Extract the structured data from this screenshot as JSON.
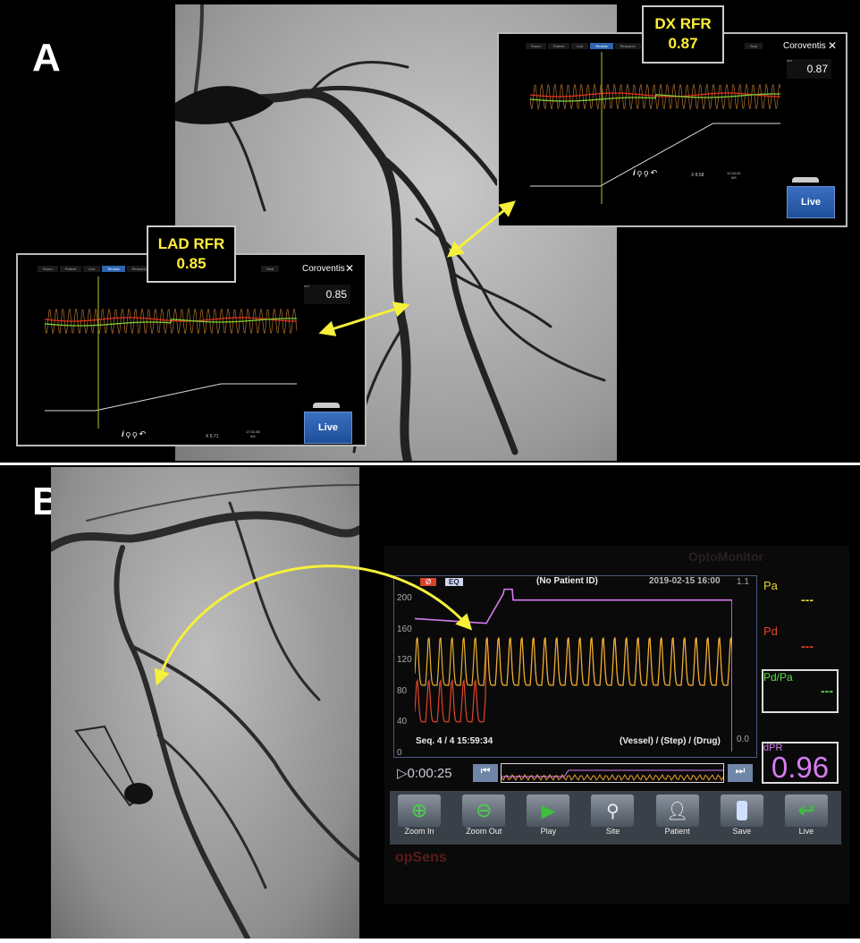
{
  "panel_a": {
    "label": "A",
    "dx": {
      "callout_title": "DX RFR",
      "callout_value": "0.87",
      "brand": "Coroventis",
      "tabs": [
        "Room",
        "Patient",
        "Live",
        "Review",
        "Research",
        "Seal"
      ],
      "active_tab": "Review",
      "rfr_label": "RFR",
      "rfr_value": "0.87",
      "x_readout": "X 8.58",
      "time": "12:34:02",
      "page": "5/5",
      "live_label": "Live"
    },
    "lad": {
      "callout_title": "LAD RFR",
      "callout_value": "0.85",
      "brand": "Coroventis",
      "tabs": [
        "Room",
        "Patient",
        "Live",
        "Review",
        "Research",
        "Seal"
      ],
      "active_tab": "Review",
      "rfr_label": "RFR",
      "rfr_value": "0.85",
      "x_readout": "X 6.71",
      "time": "17:31:38",
      "page": "4/4",
      "live_label": "Live"
    },
    "arrow_color": "#f5f03a"
  },
  "panel_b": {
    "label": "B",
    "monitor": {
      "watermark": "OptoMonitor",
      "patient": "(No Patient ID)",
      "datetime": "2019-02-15  16:00",
      "badge_red": "Ø",
      "badge_eq": "EQ",
      "left_axis": [
        "200",
        "160",
        "120",
        "80",
        "40",
        "0"
      ],
      "right_axis": [
        "1.1",
        "0.0"
      ],
      "seq": "Seq. 4 / 4  15:59:34",
      "context": "(Vessel) / (Step) / (Drug)",
      "timer": "▷0:00:25",
      "legend": {
        "pa": "Pa",
        "pd": "Pd",
        "pdpa": "Pd/Pa",
        "pa_value": "---",
        "pd_value": "---",
        "pdpa_value": "---"
      },
      "dpr_label": "dPR",
      "dpr_value": "0.96",
      "buttons": [
        {
          "label": "Zoom In",
          "icon": "plus-circle-icon"
        },
        {
          "label": "Zoom Out",
          "icon": "minus-circle-icon"
        },
        {
          "label": "Play",
          "icon": "play-icon"
        },
        {
          "label": "Site",
          "icon": "location-pin-icon"
        },
        {
          "label": "Patient",
          "icon": "person-icon"
        },
        {
          "label": "Save",
          "icon": "usb-drive-icon"
        },
        {
          "label": "Live",
          "icon": "return-arrow-icon"
        }
      ],
      "brand": "opSens",
      "colors": {
        "pa": "#e8d23a",
        "pd": "#e0442a",
        "pdpa": "#5de04a",
        "dpr": "#d77cf0"
      }
    }
  }
}
